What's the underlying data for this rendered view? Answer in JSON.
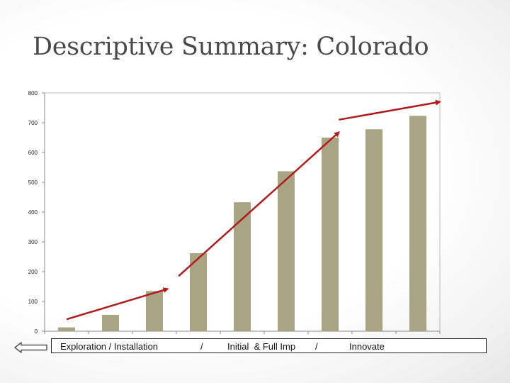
{
  "slide": {
    "title": "Descriptive Summary: Colorado"
  },
  "phases": {
    "exploration": "Exploration / Installation",
    "sep1": "/",
    "initial_full": "Initial  & Full Imp",
    "sep2": "/",
    "innovate": "Innovate"
  },
  "icons": {
    "back": "left-arrow-icon"
  },
  "colors": {
    "bar": "#a9a584",
    "trend_arrow": "#b01c1c",
    "axis": "#888888"
  },
  "chart_data": {
    "type": "bar",
    "title": "",
    "xlabel": "",
    "ylabel": "",
    "ylim": [
      0,
      800
    ],
    "yticks": [
      0,
      100,
      200,
      300,
      400,
      500,
      600,
      700,
      800
    ],
    "grid": false,
    "legend": "none",
    "categories": [
      "",
      "",
      "",
      "",
      "",
      "",
      "",
      "",
      ""
    ],
    "values": [
      13,
      55,
      135,
      262,
      433,
      537,
      650,
      678,
      723
    ],
    "annotations": [
      {
        "type": "trend-arrow",
        "from_value": [
          0,
          40
        ],
        "to_value": [
          2.3,
          142
        ]
      },
      {
        "type": "trend-arrow",
        "from_value": [
          2.55,
          185
        ],
        "to_value": [
          6.2,
          668
        ]
      },
      {
        "type": "trend-arrow",
        "from_value": [
          6.2,
          710
        ],
        "to_value": [
          8.5,
          770
        ]
      }
    ]
  }
}
